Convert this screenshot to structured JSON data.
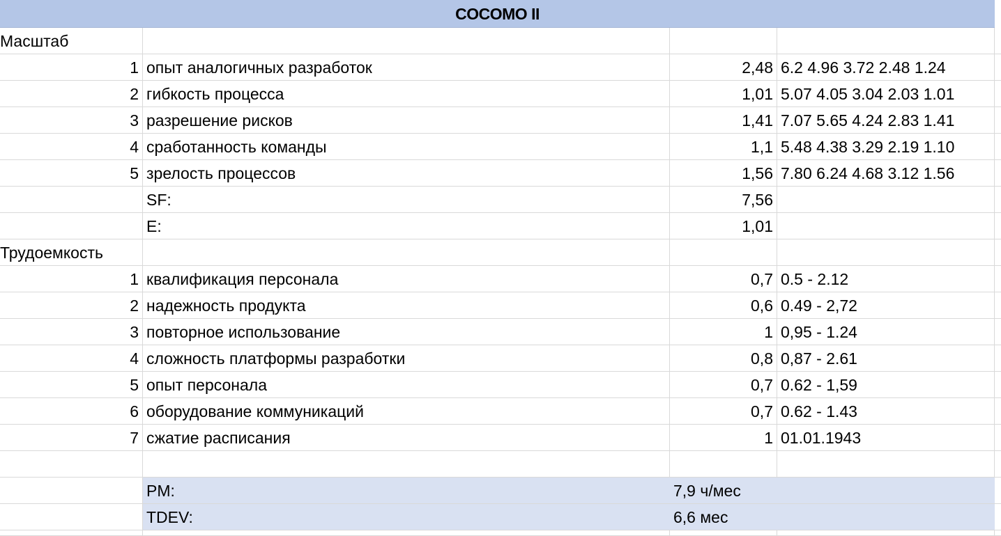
{
  "title": "COCOMO II",
  "scale": {
    "section_label": "Масштаб",
    "rows": [
      {
        "n": "1",
        "name": "опыт аналогичных разработок",
        "value": "2,48",
        "range": "6.2 4.96 3.72 2.48 1.24"
      },
      {
        "n": "2",
        "name": "гибкость процесса",
        "value": "1,01",
        "range": "5.07 4.05 3.04 2.03 1.01"
      },
      {
        "n": "3",
        "name": "разрешение рисков",
        "value": "1,41",
        "range": "7.07 5.65 4.24 2.83 1.41"
      },
      {
        "n": "4",
        "name": "сработанность команды",
        "value": "1,1",
        "range": "5.48 4.38 3.29 2.19 1.10"
      },
      {
        "n": "5",
        "name": "зрелость процессов",
        "value": "1,56",
        "range": "7.80 6.24 4.68 3.12 1.56"
      }
    ],
    "sf_label": "SF:",
    "sf_value": "7,56",
    "e_label": "E:",
    "e_value": "1,01"
  },
  "effort": {
    "section_label": "Трудоемкость",
    "rows": [
      {
        "n": "1",
        "name": "квалификация персонала",
        "value": "0,7",
        "range": "0.5 - 2.12"
      },
      {
        "n": "2",
        "name": "надежность продукта",
        "value": "0,6",
        "range": "0.49 - 2,72"
      },
      {
        "n": "3",
        "name": "повторное использование",
        "value": "1",
        "range": "0,95 - 1.24"
      },
      {
        "n": "4",
        "name": "сложность платформы разработки",
        "value": "0,8",
        "range": "0,87 - 2.61"
      },
      {
        "n": "5",
        "name": "опыт персонала",
        "value": "0,7",
        "range": "0.62 - 1,59"
      },
      {
        "n": "6",
        "name": "оборудование коммуникаций",
        "value": "0,7",
        "range": "0.62 - 1.43"
      },
      {
        "n": "7",
        "name": "сжатие расписания",
        "value": "1",
        "range": "01.01.1943"
      }
    ]
  },
  "summary": {
    "pm_label": "PM:",
    "pm_value": "7,9 ч/мес",
    "tdev_label": "TDEV:",
    "tdev_value": "6,6 мес"
  },
  "colors": {
    "header_fill": "#b4c6e7",
    "summary_fill": "#d9e1f2",
    "grid": "#d9d9d9"
  }
}
